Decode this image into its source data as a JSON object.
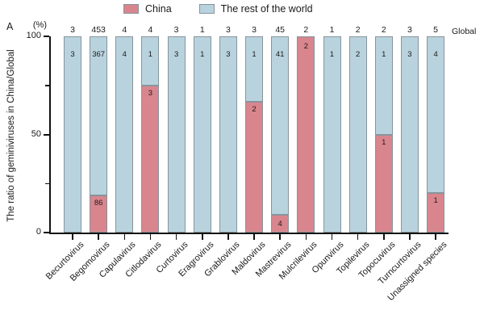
{
  "panel": {
    "label": "A"
  },
  "legend": {
    "items": [
      {
        "label": "China",
        "color": "#d9858d"
      },
      {
        "label": "The rest of the world",
        "color": "#b9d3de"
      }
    ]
  },
  "chart_data": {
    "type": "bar",
    "stacked": true,
    "title": "",
    "categories": [
      "Becurtovirus",
      "Begomovirus",
      "Capulavirus",
      "Citlodavirus",
      "Curtovirus",
      "Eragrovirus",
      "Grablovirus",
      "Maldovirus",
      "Mastrevirus",
      "Mulcrilevirus",
      "Opunvirus",
      "Topilevirus",
      "Topocuvirus",
      "Turncurtovirus",
      "Unassigned species"
    ],
    "series": [
      {
        "name": "China",
        "color": "#d9858d",
        "counts": [
          0,
          86,
          0,
          3,
          0,
          0,
          0,
          2,
          4,
          2,
          0,
          0,
          1,
          0,
          1
        ]
      },
      {
        "name": "The rest of the world",
        "color": "#b9d3de",
        "counts": [
          3,
          367,
          4,
          1,
          3,
          1,
          3,
          1,
          41,
          0,
          1,
          2,
          1,
          3,
          4
        ]
      }
    ],
    "global_totals": [
      3,
      453,
      4,
      4,
      3,
      1,
      3,
      3,
      45,
      2,
      1,
      2,
      2,
      3,
      5
    ],
    "note": "bar segment heights are count/global_total expressed as percent",
    "ylabel": "The ratio of geminiviruses in China/Global",
    "y_unit": "(%)",
    "yticks": [
      0,
      50,
      100
    ],
    "minor_yticks": [
      25,
      75
    ],
    "ylim": [
      0,
      100
    ],
    "right_axis_label": "Global",
    "legend_position": "top",
    "grid": false
  }
}
